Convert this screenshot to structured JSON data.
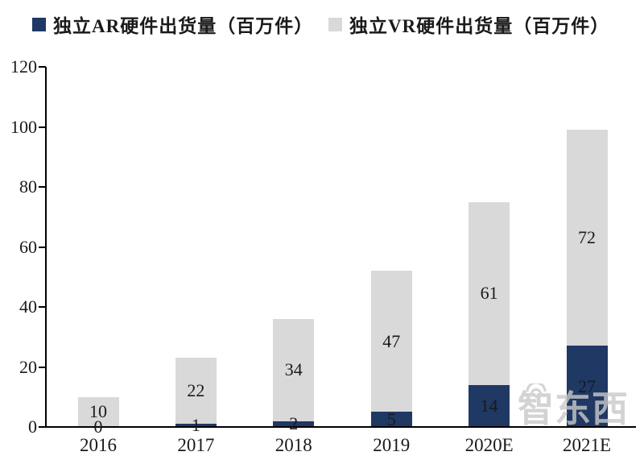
{
  "legend": {
    "items": [
      {
        "label": "独立AR硬件出货量（百万件）",
        "color": "#1F3864"
      },
      {
        "label": "独立VR硬件出货量（百万件）",
        "color": "#D9D9D9"
      }
    ]
  },
  "chart_data": {
    "type": "bar",
    "stacked": true,
    "categories": [
      "2016",
      "2017",
      "2018",
      "2019",
      "2020E",
      "2021E"
    ],
    "series": [
      {
        "name": "独立AR硬件出货量（百万件）",
        "color": "#1F3864",
        "values": [
          0,
          1,
          2,
          5,
          14,
          27
        ]
      },
      {
        "name": "独立VR硬件出货量（百万件）",
        "color": "#D9D9D9",
        "values": [
          10,
          22,
          34,
          47,
          61,
          72
        ]
      }
    ],
    "title": "",
    "xlabel": "",
    "ylabel": "",
    "ylim": [
      0,
      120
    ],
    "yticks": [
      0,
      20,
      40,
      60,
      80,
      100,
      120
    ],
    "grid": false,
    "legend_position": "top",
    "data_labels": true,
    "axis_color": "#000000",
    "label_color": "#1a1a1a"
  },
  "watermark": {
    "text": "智东西"
  }
}
